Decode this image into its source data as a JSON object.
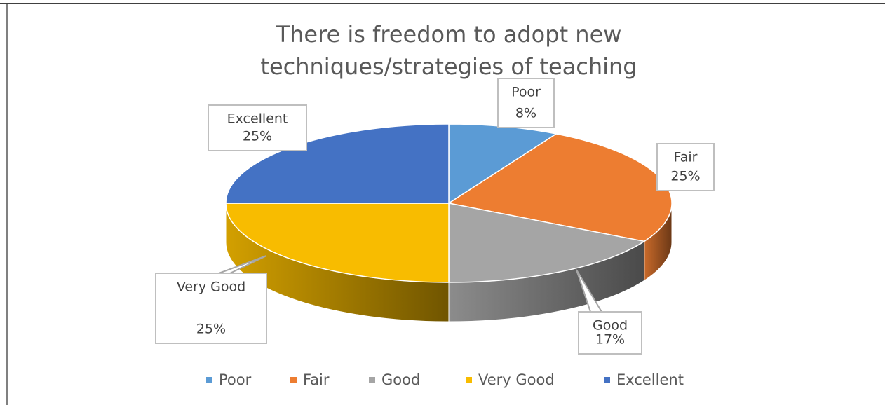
{
  "chart_data": {
    "type": "pie",
    "title": "There is freedom to adopt new techniques/strategies of teaching",
    "categories": [
      "Poor",
      "Fair",
      "Good",
      "Very Good",
      "Excellent"
    ],
    "values": [
      8,
      25,
      17,
      25,
      25
    ],
    "value_labels": [
      "8%",
      "25%",
      "17%",
      "25%",
      "25%"
    ],
    "colors": [
      "#5b9bd5",
      "#ed7d31",
      "#a5a5a5",
      "#f8bc00",
      "#4472c4"
    ],
    "legend": "bottom"
  }
}
